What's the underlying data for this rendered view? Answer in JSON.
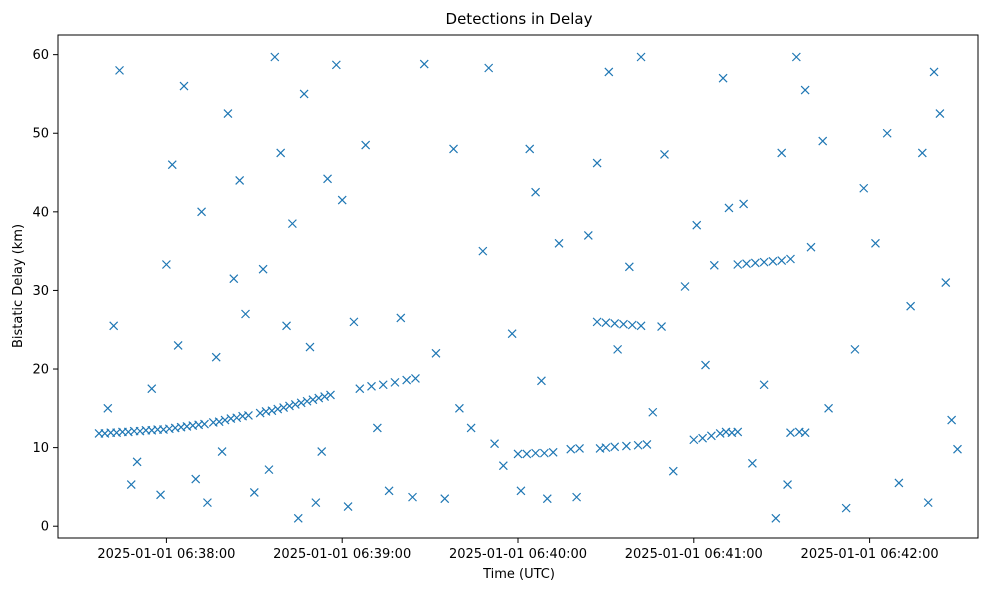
{
  "chart_data": {
    "type": "scatter",
    "title": "Detections in Delay",
    "xlabel": "Time (UTC)",
    "ylabel": "Bistatic Delay (km)",
    "marker": "x",
    "color": "#1f77b4",
    "grid": false,
    "ylim": [
      -1.5,
      62.5
    ],
    "xlim": [
      "2025-01-01 06:37:23",
      "2025-01-01 06:42:37"
    ],
    "x_ticks": [
      "2025-01-01 06:38:00",
      "2025-01-01 06:39:00",
      "2025-01-01 06:40:00",
      "2025-01-01 06:41:00",
      "2025-01-01 06:42:00"
    ],
    "y_ticks": [
      0,
      10,
      20,
      30,
      40,
      50,
      60
    ],
    "series": [
      {
        "points": [
          [
            "06:37:37",
            11.8
          ],
          [
            "06:37:39",
            11.8
          ],
          [
            "06:37:41",
            11.9
          ],
          [
            "06:37:43",
            11.9
          ],
          [
            "06:37:45",
            12.0
          ],
          [
            "06:37:47",
            12.0
          ],
          [
            "06:37:49",
            12.1
          ],
          [
            "06:37:51",
            12.1
          ],
          [
            "06:37:53",
            12.2
          ],
          [
            "06:37:55",
            12.2
          ],
          [
            "06:37:57",
            12.3
          ],
          [
            "06:37:59",
            12.3
          ],
          [
            "06:38:01",
            12.4
          ],
          [
            "06:38:03",
            12.5
          ],
          [
            "06:38:05",
            12.6
          ],
          [
            "06:38:07",
            12.7
          ],
          [
            "06:38:09",
            12.8
          ],
          [
            "06:38:11",
            12.9
          ],
          [
            "06:38:13",
            13.0
          ],
          [
            "06:38:16",
            13.2
          ],
          [
            "06:38:18",
            13.3
          ],
          [
            "06:38:20",
            13.5
          ],
          [
            "06:38:22",
            13.7
          ],
          [
            "06:38:24",
            13.8
          ],
          [
            "06:38:26",
            14.0
          ],
          [
            "06:38:28",
            14.1
          ],
          [
            "06:38:32",
            14.4
          ],
          [
            "06:38:34",
            14.6
          ],
          [
            "06:38:36",
            14.7
          ],
          [
            "06:38:38",
            14.9
          ],
          [
            "06:38:40",
            15.1
          ],
          [
            "06:38:42",
            15.3
          ],
          [
            "06:38:44",
            15.5
          ],
          [
            "06:38:46",
            15.7
          ],
          [
            "06:38:48",
            15.9
          ],
          [
            "06:38:50",
            16.1
          ],
          [
            "06:38:52",
            16.3
          ],
          [
            "06:38:54",
            16.5
          ],
          [
            "06:38:56",
            16.7
          ],
          [
            "06:39:06",
            17.5
          ],
          [
            "06:39:10",
            17.8
          ],
          [
            "06:39:14",
            18.0
          ],
          [
            "06:39:18",
            18.3
          ],
          [
            "06:39:22",
            18.6
          ],
          [
            "06:39:25",
            18.8
          ],
          [
            "06:40:00",
            9.2
          ],
          [
            "06:40:03",
            9.2
          ],
          [
            "06:40:06",
            9.3
          ],
          [
            "06:40:09",
            9.3
          ],
          [
            "06:40:12",
            9.4
          ],
          [
            "06:40:18",
            9.8
          ],
          [
            "06:40:21",
            9.9
          ],
          [
            "06:40:28",
            9.9
          ],
          [
            "06:40:30",
            10.0
          ],
          [
            "06:40:33",
            10.1
          ],
          [
            "06:40:37",
            10.2
          ],
          [
            "06:40:41",
            10.3
          ],
          [
            "06:40:44",
            10.4
          ],
          [
            "06:40:27",
            26.0
          ],
          [
            "06:40:30",
            25.9
          ],
          [
            "06:40:33",
            25.8
          ],
          [
            "06:40:36",
            25.7
          ],
          [
            "06:40:39",
            25.6
          ],
          [
            "06:40:42",
            25.5
          ],
          [
            "06:40:49",
            25.4
          ],
          [
            "06:41:00",
            11.0
          ],
          [
            "06:41:03",
            11.2
          ],
          [
            "06:41:06",
            11.5
          ],
          [
            "06:41:09",
            11.8
          ],
          [
            "06:41:11",
            12.0
          ],
          [
            "06:41:13",
            11.9
          ],
          [
            "06:41:15",
            12.0
          ],
          [
            "06:41:33",
            11.9
          ],
          [
            "06:41:36",
            12.0
          ],
          [
            "06:41:38",
            11.9
          ],
          [
            "06:41:15",
            33.3
          ],
          [
            "06:41:18",
            33.4
          ],
          [
            "06:41:21",
            33.5
          ],
          [
            "06:41:24",
            33.6
          ],
          [
            "06:41:27",
            33.7
          ],
          [
            "06:41:30",
            33.8
          ],
          [
            "06:41:33",
            34.0
          ],
          [
            "06:37:40",
            15.0
          ],
          [
            "06:37:42",
            25.5
          ],
          [
            "06:37:44",
            58.0
          ],
          [
            "06:37:48",
            5.3
          ],
          [
            "06:37:50",
            8.2
          ],
          [
            "06:37:55",
            17.5
          ],
          [
            "06:37:58",
            4.0
          ],
          [
            "06:38:00",
            33.3
          ],
          [
            "06:38:02",
            46.0
          ],
          [
            "06:38:04",
            23.0
          ],
          [
            "06:38:06",
            56.0
          ],
          [
            "06:38:10",
            6.0
          ],
          [
            "06:38:12",
            40.0
          ],
          [
            "06:38:14",
            3.0
          ],
          [
            "06:38:17",
            21.5
          ],
          [
            "06:38:19",
            9.5
          ],
          [
            "06:38:21",
            52.5
          ],
          [
            "06:38:23",
            31.5
          ],
          [
            "06:38:25",
            44.0
          ],
          [
            "06:38:27",
            27.0
          ],
          [
            "06:38:30",
            4.3
          ],
          [
            "06:38:33",
            32.7
          ],
          [
            "06:38:35",
            7.2
          ],
          [
            "06:38:37",
            59.7
          ],
          [
            "06:38:39",
            47.5
          ],
          [
            "06:38:41",
            25.5
          ],
          [
            "06:38:43",
            38.5
          ],
          [
            "06:38:45",
            1.0
          ],
          [
            "06:38:47",
            55.0
          ],
          [
            "06:38:49",
            22.8
          ],
          [
            "06:38:51",
            3.0
          ],
          [
            "06:38:53",
            9.5
          ],
          [
            "06:38:55",
            44.2
          ],
          [
            "06:38:58",
            58.7
          ],
          [
            "06:39:00",
            41.5
          ],
          [
            "06:39:02",
            2.5
          ],
          [
            "06:39:04",
            26.0
          ],
          [
            "06:39:08",
            48.5
          ],
          [
            "06:39:12",
            12.5
          ],
          [
            "06:39:16",
            4.5
          ],
          [
            "06:39:20",
            26.5
          ],
          [
            "06:39:24",
            3.7
          ],
          [
            "06:39:28",
            58.8
          ],
          [
            "06:39:32",
            22.0
          ],
          [
            "06:39:35",
            3.5
          ],
          [
            "06:39:38",
            48.0
          ],
          [
            "06:39:40",
            15.0
          ],
          [
            "06:39:44",
            12.5
          ],
          [
            "06:39:48",
            35.0
          ],
          [
            "06:39:50",
            58.3
          ],
          [
            "06:39:52",
            10.5
          ],
          [
            "06:39:55",
            7.7
          ],
          [
            "06:39:58",
            24.5
          ],
          [
            "06:40:01",
            4.5
          ],
          [
            "06:40:04",
            48.0
          ],
          [
            "06:40:06",
            42.5
          ],
          [
            "06:40:08",
            18.5
          ],
          [
            "06:40:10",
            3.5
          ],
          [
            "06:40:14",
            36.0
          ],
          [
            "06:40:20",
            3.7
          ],
          [
            "06:40:24",
            37.0
          ],
          [
            "06:40:27",
            46.2
          ],
          [
            "06:40:31",
            57.8
          ],
          [
            "06:40:34",
            22.5
          ],
          [
            "06:40:38",
            33.0
          ],
          [
            "06:40:42",
            59.7
          ],
          [
            "06:40:46",
            14.5
          ],
          [
            "06:40:50",
            47.3
          ],
          [
            "06:40:53",
            7.0
          ],
          [
            "06:40:57",
            30.5
          ],
          [
            "06:41:01",
            38.3
          ],
          [
            "06:41:04",
            20.5
          ],
          [
            "06:41:07",
            33.2
          ],
          [
            "06:41:10",
            57.0
          ],
          [
            "06:41:12",
            40.5
          ],
          [
            "06:41:17",
            41.0
          ],
          [
            "06:41:20",
            8.0
          ],
          [
            "06:41:24",
            18.0
          ],
          [
            "06:41:28",
            1.0
          ],
          [
            "06:41:30",
            47.5
          ],
          [
            "06:41:32",
            5.3
          ],
          [
            "06:41:35",
            59.7
          ],
          [
            "06:41:38",
            55.5
          ],
          [
            "06:41:40",
            35.5
          ],
          [
            "06:41:44",
            49.0
          ],
          [
            "06:41:46",
            15.0
          ],
          [
            "06:41:52",
            2.3
          ],
          [
            "06:41:55",
            22.5
          ],
          [
            "06:41:58",
            43.0
          ],
          [
            "06:42:02",
            36.0
          ],
          [
            "06:42:06",
            50.0
          ],
          [
            "06:42:10",
            5.5
          ],
          [
            "06:42:14",
            28.0
          ],
          [
            "06:42:18",
            47.5
          ],
          [
            "06:42:20",
            3.0
          ],
          [
            "06:42:22",
            57.8
          ],
          [
            "06:42:24",
            52.5
          ],
          [
            "06:42:26",
            31.0
          ],
          [
            "06:42:28",
            13.5
          ],
          [
            "06:42:30",
            9.8
          ]
        ]
      }
    ]
  }
}
